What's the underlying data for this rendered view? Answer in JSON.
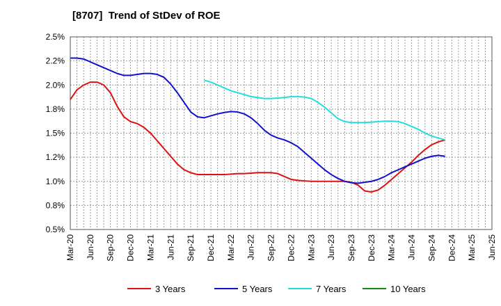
{
  "chart_data": {
    "type": "line",
    "title": "[8707]  Trend of StDev of ROE",
    "xlabel": "",
    "ylabel": "",
    "ylim": [
      0.5,
      2.5
    ],
    "y_ticks": [
      "2.5%",
      "2.2%",
      "2.0%",
      "1.8%",
      "1.5%",
      "1.2%",
      "1.0%",
      "0.8%",
      "0.5%"
    ],
    "y_tick_values": [
      2.5,
      2.25,
      2.0,
      1.75,
      1.5,
      1.25,
      1.0,
      0.75,
      0.5
    ],
    "x_ticks": [
      "Mar-20",
      "Jun-20",
      "Sep-20",
      "Dec-20",
      "Mar-21",
      "Jun-21",
      "Sep-21",
      "Dec-21",
      "Mar-22",
      "Jun-22",
      "Sep-22",
      "Dec-22",
      "Mar-23",
      "Jun-23",
      "Sep-23",
      "Dec-23",
      "Mar-24",
      "Jun-24",
      "Sep-24",
      "Dec-24",
      "Mar-25",
      "Jun-25"
    ],
    "grid": true,
    "legend_position": "bottom",
    "series": [
      {
        "name": "3 Years",
        "color": "#dd1111",
        "points": [
          [
            0,
            1.85
          ],
          [
            1,
            1.95
          ],
          [
            2,
            2.0
          ],
          [
            3,
            2.03
          ],
          [
            4,
            2.03
          ],
          [
            5,
            2.0
          ],
          [
            6,
            1.92
          ],
          [
            7,
            1.78
          ],
          [
            8,
            1.67
          ],
          [
            9,
            1.62
          ],
          [
            10,
            1.6
          ],
          [
            11,
            1.56
          ],
          [
            12,
            1.5
          ],
          [
            13,
            1.42
          ],
          [
            14,
            1.34
          ],
          [
            15,
            1.26
          ],
          [
            16,
            1.18
          ],
          [
            17,
            1.12
          ],
          [
            18,
            1.09
          ],
          [
            19,
            1.07
          ],
          [
            20,
            1.07
          ],
          [
            21,
            1.07
          ],
          [
            22,
            1.07
          ],
          [
            23,
            1.07
          ],
          [
            24,
            1.075
          ],
          [
            25,
            1.08
          ],
          [
            26,
            1.08
          ],
          [
            27,
            1.085
          ],
          [
            28,
            1.09
          ],
          [
            29,
            1.09
          ],
          [
            30,
            1.09
          ],
          [
            31,
            1.08
          ],
          [
            32,
            1.05
          ],
          [
            33,
            1.02
          ],
          [
            34,
            1.01
          ],
          [
            35,
            1.005
          ],
          [
            36,
            1.0
          ],
          [
            37,
            1.0
          ],
          [
            38,
            1.0
          ],
          [
            39,
            1.0
          ],
          [
            40,
            1.0
          ],
          [
            41,
            1.0
          ],
          [
            42,
            0.99
          ],
          [
            43,
            0.96
          ],
          [
            44,
            0.9
          ],
          [
            45,
            0.89
          ],
          [
            46,
            0.91
          ],
          [
            47,
            0.96
          ],
          [
            48,
            1.02
          ],
          [
            49,
            1.08
          ],
          [
            50,
            1.14
          ],
          [
            51,
            1.2
          ],
          [
            52,
            1.27
          ],
          [
            53,
            1.33
          ],
          [
            54,
            1.38
          ],
          [
            55,
            1.41
          ],
          [
            56,
            1.43
          ]
        ]
      },
      {
        "name": "5 Years",
        "color": "#1111cc",
        "points": [
          [
            0,
            2.28
          ],
          [
            1,
            2.28
          ],
          [
            2,
            2.27
          ],
          [
            3,
            2.24
          ],
          [
            4,
            2.21
          ],
          [
            5,
            2.18
          ],
          [
            6,
            2.15
          ],
          [
            7,
            2.12
          ],
          [
            8,
            2.1
          ],
          [
            9,
            2.1
          ],
          [
            10,
            2.11
          ],
          [
            11,
            2.12
          ],
          [
            12,
            2.12
          ],
          [
            13,
            2.11
          ],
          [
            14,
            2.08
          ],
          [
            15,
            2.01
          ],
          [
            16,
            1.92
          ],
          [
            17,
            1.82
          ],
          [
            18,
            1.72
          ],
          [
            19,
            1.67
          ],
          [
            20,
            1.66
          ],
          [
            21,
            1.68
          ],
          [
            22,
            1.7
          ],
          [
            23,
            1.715
          ],
          [
            24,
            1.725
          ],
          [
            25,
            1.72
          ],
          [
            26,
            1.7
          ],
          [
            27,
            1.66
          ],
          [
            28,
            1.6
          ],
          [
            29,
            1.53
          ],
          [
            30,
            1.48
          ],
          [
            31,
            1.45
          ],
          [
            32,
            1.43
          ],
          [
            33,
            1.4
          ],
          [
            34,
            1.36
          ],
          [
            35,
            1.3
          ],
          [
            36,
            1.24
          ],
          [
            37,
            1.18
          ],
          [
            38,
            1.12
          ],
          [
            39,
            1.07
          ],
          [
            40,
            1.03
          ],
          [
            41,
            1.0
          ],
          [
            42,
            0.985
          ],
          [
            43,
            0.98
          ],
          [
            44,
            0.99
          ],
          [
            45,
            1.0
          ],
          [
            46,
            1.02
          ],
          [
            47,
            1.05
          ],
          [
            48,
            1.09
          ],
          [
            49,
            1.12
          ],
          [
            50,
            1.15
          ],
          [
            51,
            1.18
          ],
          [
            52,
            1.21
          ],
          [
            53,
            1.24
          ],
          [
            54,
            1.26
          ],
          [
            55,
            1.27
          ],
          [
            56,
            1.26
          ]
        ]
      },
      {
        "name": "7 Years",
        "color": "#22dddd",
        "points": [
          [
            20,
            2.05
          ],
          [
            21,
            2.03
          ],
          [
            22,
            2.0
          ],
          [
            23,
            1.97
          ],
          [
            24,
            1.94
          ],
          [
            25,
            1.92
          ],
          [
            26,
            1.9
          ],
          [
            27,
            1.88
          ],
          [
            28,
            1.87
          ],
          [
            29,
            1.86
          ],
          [
            30,
            1.86
          ],
          [
            31,
            1.865
          ],
          [
            32,
            1.87
          ],
          [
            33,
            1.88
          ],
          [
            34,
            1.88
          ],
          [
            35,
            1.875
          ],
          [
            36,
            1.86
          ],
          [
            37,
            1.82
          ],
          [
            38,
            1.77
          ],
          [
            39,
            1.71
          ],
          [
            40,
            1.65
          ],
          [
            41,
            1.62
          ],
          [
            42,
            1.61
          ],
          [
            43,
            1.61
          ],
          [
            44,
            1.61
          ],
          [
            45,
            1.615
          ],
          [
            46,
            1.62
          ],
          [
            47,
            1.625
          ],
          [
            48,
            1.625
          ],
          [
            49,
            1.62
          ],
          [
            50,
            1.6
          ],
          [
            51,
            1.57
          ],
          [
            52,
            1.54
          ],
          [
            53,
            1.5
          ],
          [
            54,
            1.47
          ],
          [
            55,
            1.45
          ],
          [
            56,
            1.43
          ]
        ]
      },
      {
        "name": "10 Years",
        "color": "#118811",
        "points": []
      }
    ]
  }
}
